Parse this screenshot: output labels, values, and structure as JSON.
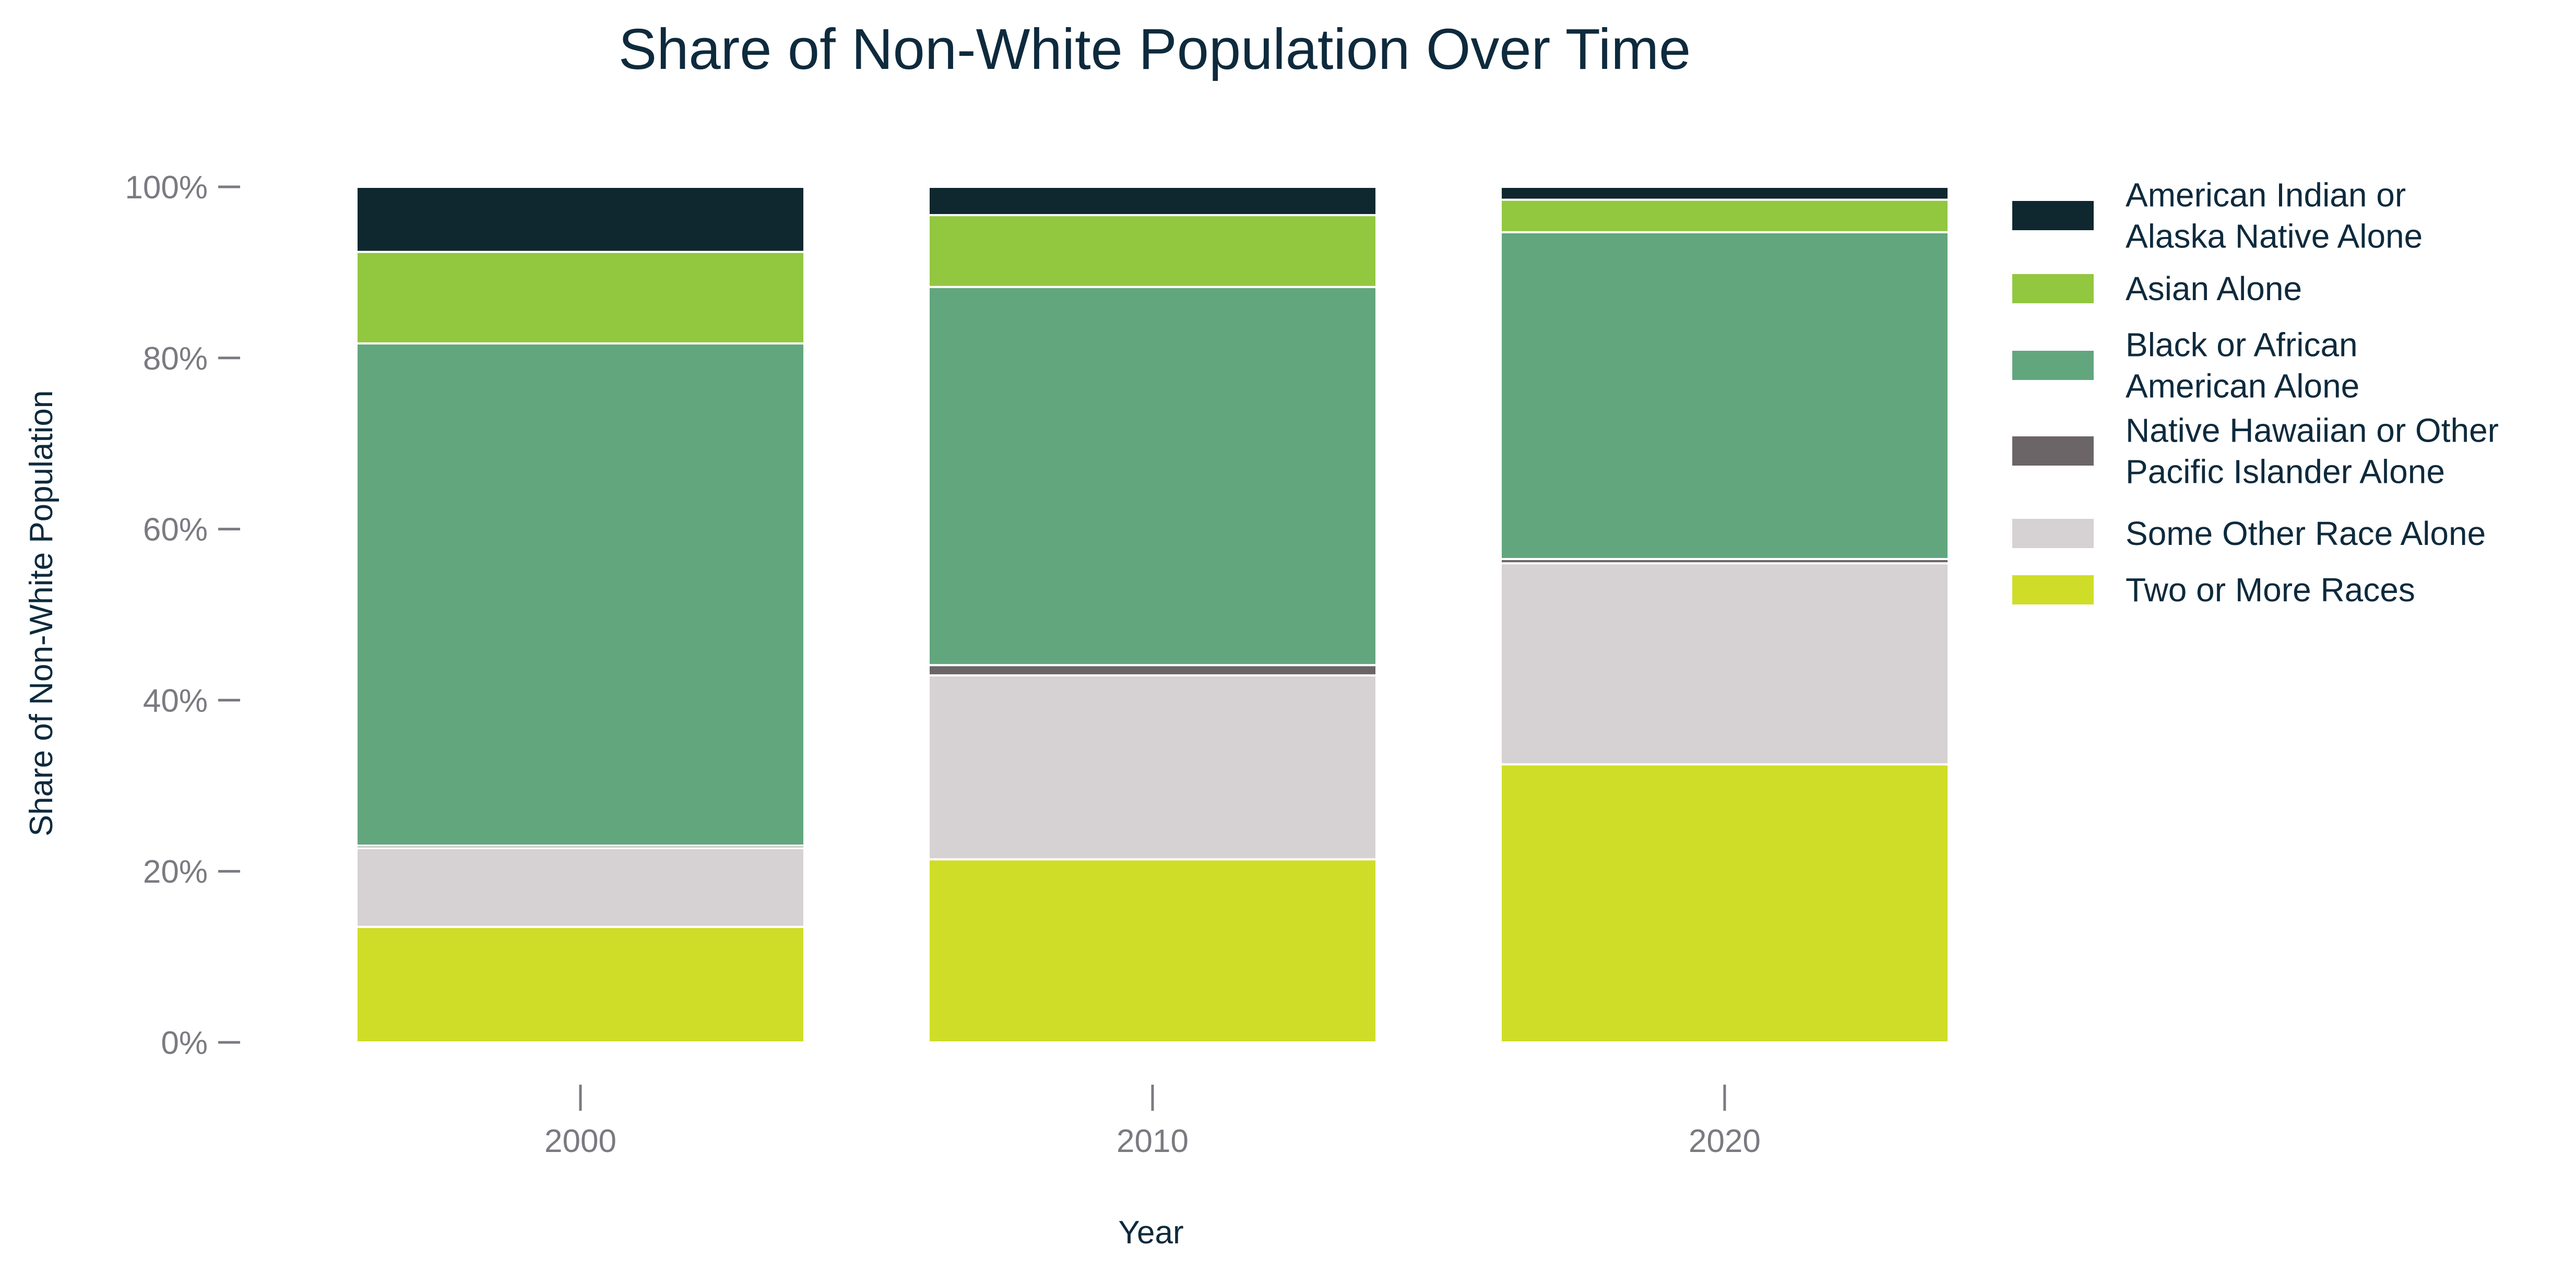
{
  "chart_data": {
    "type": "bar",
    "stacked": true,
    "title": "Share of Non-White Population Over Time",
    "xlabel": "Year",
    "ylabel": "Share of Non-White Population",
    "ylim": [
      0,
      1
    ],
    "y_ticks": [
      0,
      0.2,
      0.4,
      0.6,
      0.8,
      1.0
    ],
    "y_tick_labels": [
      "0%",
      "20%",
      "40%",
      "60%",
      "80%",
      "100%"
    ],
    "categories": [
      "2000",
      "2010",
      "2020"
    ],
    "legend_position": "right",
    "grid": false,
    "series": [
      {
        "name": "Two or More Races",
        "color": "#cfdd28",
        "values": [
          0.135,
          0.214,
          0.325
        ]
      },
      {
        "name": "Some Other Race Alone",
        "color": "#d6d1d3",
        "values": [
          0.092,
          0.215,
          0.235
        ]
      },
      {
        "name": "Native Hawaiian or Other Pacific Islander Alone",
        "color": "#6b6567",
        "values": [
          0.003,
          0.012,
          0.005
        ]
      },
      {
        "name": "Black or African American Alone",
        "color": "#62a67e",
        "values": [
          0.587,
          0.442,
          0.382
        ]
      },
      {
        "name": "Asian Alone",
        "color": "#92c740",
        "values": [
          0.107,
          0.084,
          0.038
        ]
      },
      {
        "name": "American Indian or Alaska Native Alone",
        "color": "#0f272e",
        "values": [
          0.076,
          0.033,
          0.015
        ]
      }
    ],
    "legend_entries": [
      {
        "lines": [
          "American Indian or",
          "Alaska Native Alone"
        ],
        "color": "#0f272e"
      },
      {
        "lines": [
          "Asian Alone"
        ],
        "color": "#92c740"
      },
      {
        "lines": [
          "Black or African",
          "American Alone"
        ],
        "color": "#62a67e"
      },
      {
        "lines": [
          "Native Hawaiian or Other",
          "Pacific Islander Alone"
        ],
        "color": "#6b6567"
      },
      {
        "lines": [
          "Some Other Race Alone"
        ],
        "color": "#d6d1d3"
      },
      {
        "lines": [
          "Two or More Races"
        ],
        "color": "#cfdd28"
      }
    ]
  }
}
